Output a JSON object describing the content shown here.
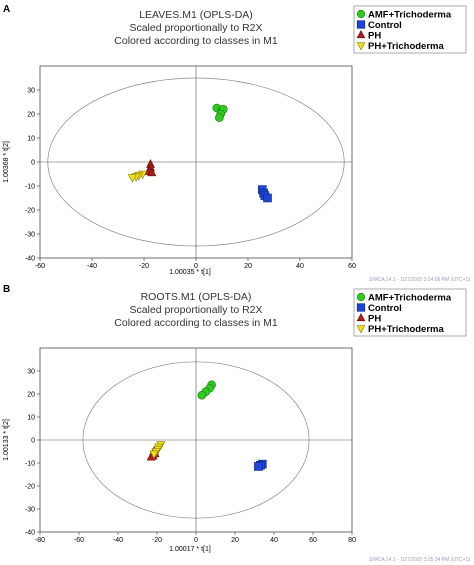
{
  "colors": {
    "amf": "#2ecc1e",
    "control": "#1f45d6",
    "ph": "#b01d1d",
    "ph_trich": "#f0e016"
  },
  "chart_data": [
    {
      "type": "scatter",
      "panel": "A",
      "title": [
        "LEAVES.M1 (OPLS-DA)",
        "Scaled proportionally to R2X",
        "Colored according to classes in M1"
      ],
      "xlabel": "1.00035 * t[1]",
      "ylabel": "1.00368 * t[2]",
      "xlim": [
        -60,
        60
      ],
      "ylim": [
        -40,
        40
      ],
      "xticks": [
        -60,
        -40,
        -20,
        0,
        20,
        40,
        60
      ],
      "yticks": [
        -40,
        -30,
        -20,
        -10,
        0,
        10,
        20,
        30
      ],
      "ellipse": {
        "rx": 57,
        "ry": 35
      },
      "footer": "SIMCA 14.1 - 1/27/2020 3:24:06 PM (UTC+1)",
      "legend": [
        {
          "name": "AMF+Trichoderma",
          "marker": "circle",
          "color_key": "amf"
        },
        {
          "name": "Control",
          "marker": "square",
          "color_key": "control"
        },
        {
          "name": "PH",
          "marker": "triangle-up",
          "color_key": "ph"
        },
        {
          "name": "PH+Trichoderma",
          "marker": "triangle-down",
          "color_key": "ph_trich"
        }
      ],
      "series": [
        {
          "name": "AMF+Trichoderma",
          "marker": "circle",
          "color_key": "amf",
          "points": [
            [
              8,
              22.5
            ],
            [
              10,
              21.5
            ],
            [
              10.5,
              22
            ],
            [
              9.5,
              20
            ],
            [
              9,
              18.5
            ]
          ]
        },
        {
          "name": "Control",
          "marker": "square",
          "color_key": "control",
          "points": [
            [
              25.5,
              -11.5
            ],
            [
              26,
              -13
            ],
            [
              26.5,
              -14
            ],
            [
              27.5,
              -15
            ]
          ]
        },
        {
          "name": "PH",
          "marker": "triangle-up",
          "color_key": "ph",
          "points": [
            [
              -17.5,
              -1
            ],
            [
              -17.5,
              -2.5
            ],
            [
              -18,
              -4
            ],
            [
              -17,
              -4.5
            ]
          ]
        },
        {
          "name": "PH+Trichoderma",
          "marker": "triangle-down",
          "color_key": "ph_trich",
          "points": [
            [
              -20.5,
              -5
            ],
            [
              -22,
              -5.5
            ],
            [
              -23,
              -6
            ],
            [
              -24.5,
              -6.5
            ]
          ]
        }
      ]
    },
    {
      "type": "scatter",
      "panel": "B",
      "title": [
        "ROOTS.M1 (OPLS-DA)",
        "Scaled proportionally to R2X",
        "Colored according to classes in M1"
      ],
      "xlabel": "1.00017 * t[1]",
      "ylabel": "1.00133 * t[2]",
      "xlim": [
        -80,
        80
      ],
      "ylim": [
        -40,
        40
      ],
      "xticks": [
        -80,
        -60,
        -40,
        -20,
        0,
        20,
        40,
        60,
        80
      ],
      "yticks": [
        -40,
        -30,
        -20,
        -10,
        0,
        10,
        20,
        30
      ],
      "ellipse": {
        "rx": 58,
        "ry": 34
      },
      "footer": "SIMCA 14.1 - 1/27/2020 3:25:34 PM (UTC+1)",
      "legend": [
        {
          "name": "AMF+Trichoderma",
          "marker": "circle",
          "color_key": "amf"
        },
        {
          "name": "Control",
          "marker": "square",
          "color_key": "control"
        },
        {
          "name": "PH",
          "marker": "triangle-up",
          "color_key": "ph"
        },
        {
          "name": "PH+Trichoderma",
          "marker": "triangle-down",
          "color_key": "ph_trich"
        }
      ],
      "series": [
        {
          "name": "AMF+Trichoderma",
          "marker": "circle",
          "color_key": "amf",
          "points": [
            [
              8,
              24
            ],
            [
              7,
              22.5
            ],
            [
              5,
              21
            ],
            [
              3,
              19.5
            ]
          ]
        },
        {
          "name": "Control",
          "marker": "square",
          "color_key": "control",
          "points": [
            [
              34,
              -10.5
            ],
            [
              33,
              -11
            ],
            [
              32,
              -11.5
            ]
          ]
        },
        {
          "name": "PH",
          "marker": "triangle-up",
          "color_key": "ph",
          "points": [
            [
              -21,
              -6
            ],
            [
              -22,
              -7
            ],
            [
              -23,
              -7.5
            ],
            [
              -21.5,
              -5
            ]
          ]
        },
        {
          "name": "PH+Trichoderma",
          "marker": "triangle-down",
          "color_key": "ph_trich",
          "points": [
            [
              -18,
              -2
            ],
            [
              -19,
              -3
            ],
            [
              -19.5,
              -4
            ],
            [
              -20.5,
              -5
            ],
            [
              -21.5,
              -6
            ]
          ]
        }
      ]
    }
  ]
}
